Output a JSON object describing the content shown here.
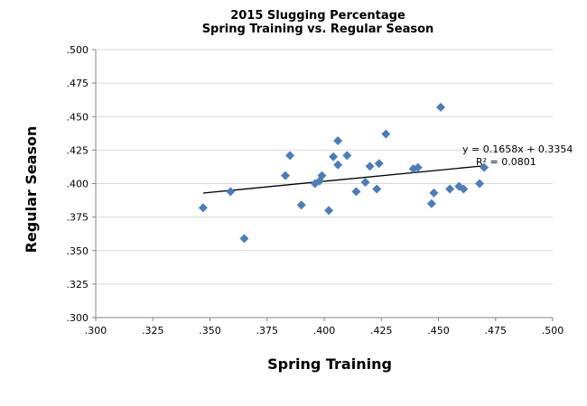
{
  "chart_data": {
    "type": "scatter",
    "title_line1": "2015 Slugging Percentage",
    "title_line2": "Spring Training vs. Regular Season",
    "xlabel": "Spring Training",
    "ylabel": "Regular Season",
    "xlim": [
      0.3,
      0.5
    ],
    "ylim": [
      0.3,
      0.5
    ],
    "x_tick_step": 0.025,
    "y_tick_step": 0.025,
    "x_ticks": [
      ".300",
      ".325",
      ".350",
      ".375",
      ".400",
      ".425",
      ".450",
      ".475",
      ".500"
    ],
    "y_ticks": [
      ".300",
      ".325",
      ".350",
      ".375",
      ".400",
      ".425",
      ".450",
      ".475",
      ".500"
    ],
    "grid": "horizontal",
    "marker_color": "#4a7ebb",
    "trendline_color": "#000000",
    "trendline": {
      "slope": 0.1658,
      "intercept": 0.3354,
      "x_range": [
        0.347,
        0.471
      ]
    },
    "equation": "y = 0.1658x + 0.3354",
    "r_squared": "R² = 0.0801",
    "points": [
      {
        "x": 0.347,
        "y": 0.382
      },
      {
        "x": 0.359,
        "y": 0.394
      },
      {
        "x": 0.365,
        "y": 0.359
      },
      {
        "x": 0.383,
        "y": 0.406
      },
      {
        "x": 0.385,
        "y": 0.421
      },
      {
        "x": 0.39,
        "y": 0.384
      },
      {
        "x": 0.396,
        "y": 0.4
      },
      {
        "x": 0.398,
        "y": 0.402
      },
      {
        "x": 0.399,
        "y": 0.406
      },
      {
        "x": 0.402,
        "y": 0.38
      },
      {
        "x": 0.404,
        "y": 0.42
      },
      {
        "x": 0.406,
        "y": 0.414
      },
      {
        "x": 0.406,
        "y": 0.432
      },
      {
        "x": 0.41,
        "y": 0.421
      },
      {
        "x": 0.414,
        "y": 0.394
      },
      {
        "x": 0.418,
        "y": 0.401
      },
      {
        "x": 0.42,
        "y": 0.413
      },
      {
        "x": 0.423,
        "y": 0.396
      },
      {
        "x": 0.424,
        "y": 0.415
      },
      {
        "x": 0.427,
        "y": 0.437
      },
      {
        "x": 0.439,
        "y": 0.411
      },
      {
        "x": 0.441,
        "y": 0.412
      },
      {
        "x": 0.447,
        "y": 0.385
      },
      {
        "x": 0.448,
        "y": 0.393
      },
      {
        "x": 0.451,
        "y": 0.457
      },
      {
        "x": 0.455,
        "y": 0.396
      },
      {
        "x": 0.459,
        "y": 0.398
      },
      {
        "x": 0.461,
        "y": 0.396
      },
      {
        "x": 0.468,
        "y": 0.4
      },
      {
        "x": 0.47,
        "y": 0.412
      }
    ]
  }
}
